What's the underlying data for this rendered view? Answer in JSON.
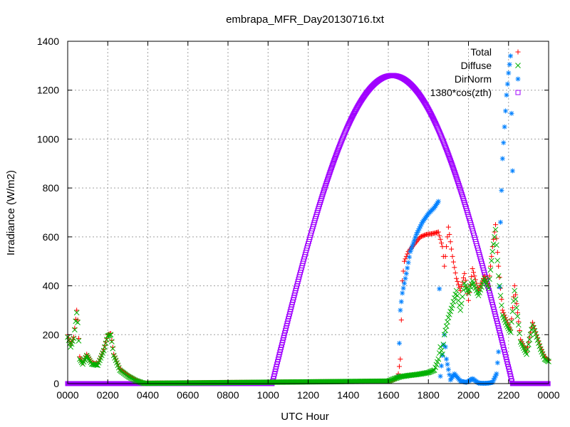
{
  "chart_data": {
    "type": "scatter",
    "title": "embrapa_MFR_Day20130716.txt",
    "xlabel": "UTC Hour",
    "ylabel": "Irradiance (W/m2)",
    "xlim": [
      0,
      24
    ],
    "ylim": [
      0,
      1400
    ],
    "x_ticks": [
      {
        "value": 0,
        "label": "0000"
      },
      {
        "value": 2,
        "label": "0200"
      },
      {
        "value": 4,
        "label": "0400"
      },
      {
        "value": 6,
        "label": "0600"
      },
      {
        "value": 8,
        "label": "0800"
      },
      {
        "value": 10,
        "label": "1000"
      },
      {
        "value": 12,
        "label": "1200"
      },
      {
        "value": 14,
        "label": "1400"
      },
      {
        "value": 16,
        "label": "1600"
      },
      {
        "value": 18,
        "label": "1800"
      },
      {
        "value": 20,
        "label": "2000"
      },
      {
        "value": 22,
        "label": "2200"
      },
      {
        "value": 24,
        "label": "0000"
      }
    ],
    "y_ticks": [
      0,
      200,
      400,
      600,
      800,
      1000,
      1200,
      1400
    ],
    "grid": true,
    "legend_position": "top-right",
    "series": [
      {
        "name": "Total",
        "color": "#ff0000",
        "marker": "plus",
        "points": [
          [
            0.0,
            200
          ],
          [
            0.15,
            160
          ],
          [
            0.3,
            190
          ],
          [
            0.45,
            300
          ],
          [
            0.5,
            260
          ],
          [
            0.6,
            110
          ],
          [
            0.75,
            85
          ],
          [
            0.95,
            120
          ],
          [
            1.2,
            85
          ],
          [
            1.5,
            80
          ],
          [
            1.8,
            140
          ],
          [
            2.0,
            200
          ],
          [
            2.15,
            205
          ],
          [
            2.3,
            120
          ],
          [
            2.6,
            60
          ],
          [
            3.0,
            35
          ],
          [
            3.4,
            15
          ],
          [
            3.8,
            2
          ],
          [
            16.1,
            10
          ],
          [
            16.4,
            20
          ],
          [
            16.5,
            40
          ],
          [
            16.6,
            100
          ],
          [
            16.7,
            420
          ],
          [
            16.8,
            500
          ],
          [
            17.0,
            540
          ],
          [
            17.3,
            570
          ],
          [
            17.6,
            600
          ],
          [
            17.9,
            610
          ],
          [
            18.1,
            612
          ],
          [
            18.3,
            615
          ],
          [
            18.5,
            620
          ],
          [
            18.7,
            560
          ],
          [
            18.8,
            480
          ],
          [
            19.0,
            640
          ],
          [
            19.2,
            520
          ],
          [
            19.4,
            430
          ],
          [
            19.6,
            380
          ],
          [
            19.8,
            450
          ],
          [
            20.0,
            340
          ],
          [
            20.2,
            470
          ],
          [
            20.5,
            380
          ],
          [
            20.8,
            440
          ],
          [
            21.0,
            400
          ],
          [
            21.2,
            560
          ],
          [
            21.35,
            650
          ],
          [
            21.5,
            480
          ],
          [
            21.7,
            300
          ],
          [
            21.9,
            260
          ],
          [
            22.1,
            220
          ],
          [
            22.3,
            400
          ],
          [
            22.6,
            180
          ],
          [
            22.9,
            130
          ],
          [
            23.2,
            250
          ],
          [
            23.4,
            200
          ],
          [
            23.6,
            150
          ],
          [
            23.8,
            110
          ],
          [
            24.0,
            95
          ]
        ]
      },
      {
        "name": "Diffuse",
        "color": "#00b000",
        "marker": "cross",
        "points": [
          [
            0.0,
            190
          ],
          [
            0.15,
            150
          ],
          [
            0.3,
            185
          ],
          [
            0.45,
            290
          ],
          [
            0.5,
            250
          ],
          [
            0.6,
            100
          ],
          [
            0.75,
            80
          ],
          [
            0.95,
            115
          ],
          [
            1.2,
            80
          ],
          [
            1.5,
            75
          ],
          [
            1.8,
            135
          ],
          [
            2.0,
            195
          ],
          [
            2.15,
            200
          ],
          [
            2.3,
            115
          ],
          [
            2.6,
            55
          ],
          [
            3.0,
            30
          ],
          [
            3.4,
            12
          ],
          [
            3.8,
            1
          ],
          [
            16.0,
            10
          ],
          [
            16.3,
            20
          ],
          [
            16.6,
            28
          ],
          [
            17.0,
            33
          ],
          [
            17.5,
            38
          ],
          [
            18.0,
            45
          ],
          [
            18.3,
            55
          ],
          [
            18.5,
            100
          ],
          [
            18.6,
            150
          ],
          [
            18.7,
            120
          ],
          [
            18.8,
            200
          ],
          [
            19.0,
            270
          ],
          [
            19.2,
            320
          ],
          [
            19.4,
            380
          ],
          [
            19.6,
            300
          ],
          [
            19.8,
            410
          ],
          [
            20.0,
            370
          ],
          [
            20.2,
            420
          ],
          [
            20.5,
            360
          ],
          [
            20.8,
            430
          ],
          [
            21.0,
            390
          ],
          [
            21.2,
            540
          ],
          [
            21.35,
            630
          ],
          [
            21.5,
            440
          ],
          [
            21.7,
            280
          ],
          [
            21.9,
            240
          ],
          [
            22.1,
            210
          ],
          [
            22.3,
            380
          ],
          [
            22.6,
            170
          ],
          [
            22.9,
            120
          ],
          [
            23.2,
            240
          ],
          [
            23.4,
            190
          ],
          [
            23.6,
            140
          ],
          [
            23.8,
            100
          ],
          [
            24.0,
            90
          ]
        ]
      },
      {
        "name": "DirNorm",
        "color": "#0080ff",
        "marker": "star",
        "points": [
          [
            16.5,
            30
          ],
          [
            16.6,
            300
          ],
          [
            16.7,
            370
          ],
          [
            16.9,
            450
          ],
          [
            17.1,
            540
          ],
          [
            17.4,
            610
          ],
          [
            17.7,
            660
          ],
          [
            18.0,
            695
          ],
          [
            18.3,
            720
          ],
          [
            18.5,
            745
          ],
          [
            18.6,
            30
          ],
          [
            18.8,
            200
          ],
          [
            18.9,
            100
          ],
          [
            19.1,
            15
          ],
          [
            19.3,
            40
          ],
          [
            19.6,
            10
          ],
          [
            19.9,
            5
          ],
          [
            20.2,
            20
          ],
          [
            20.5,
            2
          ],
          [
            20.8,
            1
          ],
          [
            21.0,
            2
          ],
          [
            21.2,
            5
          ],
          [
            21.4,
            40
          ],
          [
            21.5,
            130
          ],
          [
            21.6,
            660
          ],
          [
            21.7,
            920
          ],
          [
            21.8,
            1050
          ],
          [
            21.9,
            1180
          ],
          [
            22.0,
            1270
          ],
          [
            22.1,
            1340
          ],
          [
            22.2,
            870
          ]
        ]
      },
      {
        "name": "1380*cos(zth)",
        "color": "#a000ff",
        "marker": "square",
        "function": {
          "amplitude": 1260,
          "center": 16.2,
          "half_width": 6.0,
          "start": 10.2,
          "end": 22.2
        }
      }
    ]
  }
}
